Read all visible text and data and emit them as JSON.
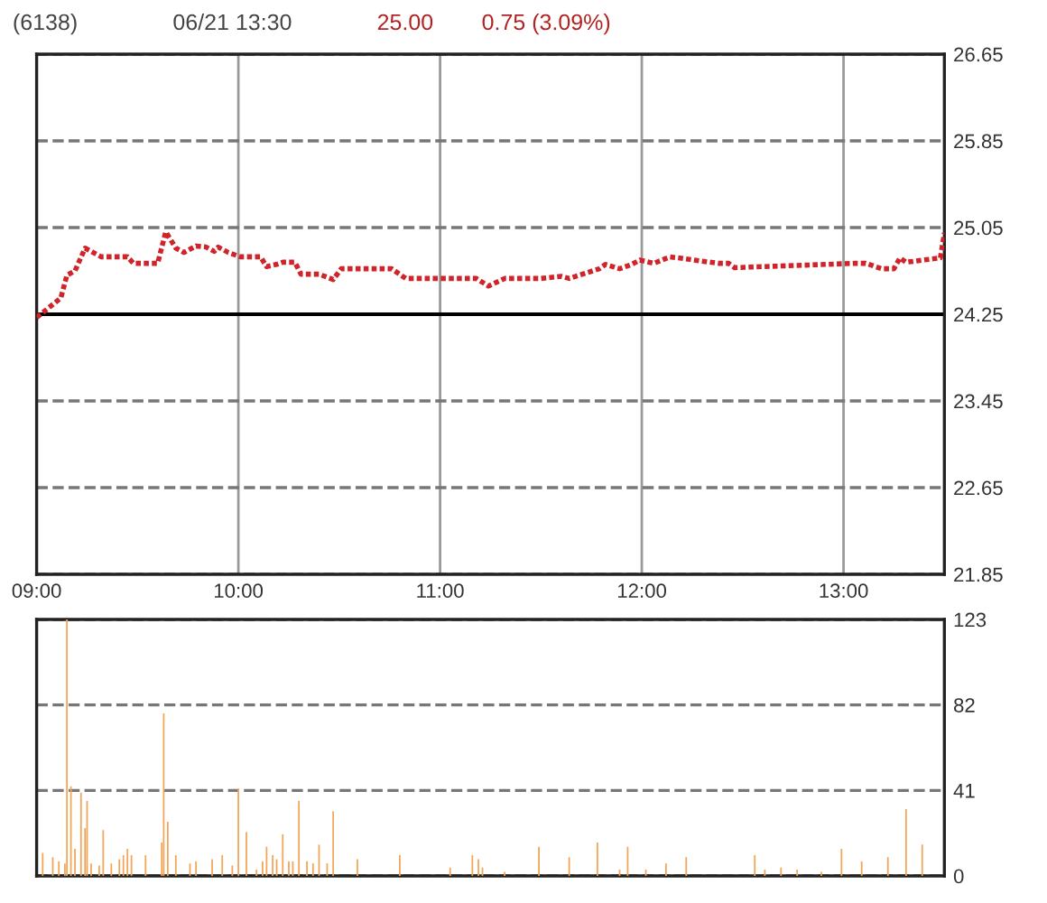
{
  "chart_data": [
    {
      "type": "line",
      "title": "(6138)",
      "subtitle": "06/21 13:30",
      "annotations": [
        "25.00",
        "0.75 (3.09%)"
      ],
      "x": [
        9.0,
        9.12,
        9.15,
        9.19,
        9.24,
        9.32,
        9.45,
        9.48,
        9.6,
        9.64,
        9.69,
        9.73,
        9.79,
        9.84,
        9.88,
        9.9,
        9.95,
        10.01,
        10.11,
        10.14,
        10.19,
        10.22,
        10.28,
        10.31,
        10.4,
        10.47,
        10.51,
        10.76,
        10.83,
        11.18,
        11.24,
        11.32,
        11.47,
        11.5,
        11.6,
        11.64,
        11.79,
        11.82,
        11.89,
        11.95,
        11.99,
        12.06,
        12.14,
        12.38,
        12.43,
        12.46,
        13.06,
        13.11,
        13.19,
        13.25,
        13.28,
        13.31,
        13.48,
        13.5
      ],
      "series": [
        {
          "color": "#d0232a",
          "values": [
            24.22,
            24.4,
            24.61,
            24.65,
            24.86,
            24.78,
            24.78,
            24.72,
            24.72,
            25.01,
            24.86,
            24.82,
            24.88,
            24.87,
            24.83,
            24.87,
            24.82,
            24.78,
            24.78,
            24.69,
            24.71,
            24.73,
            24.73,
            24.62,
            24.62,
            24.57,
            24.67,
            24.67,
            24.58,
            24.58,
            24.51,
            24.58,
            24.58,
            24.58,
            24.6,
            24.58,
            24.67,
            24.71,
            24.67,
            24.71,
            24.75,
            24.72,
            24.78,
            24.72,
            24.72,
            24.68,
            24.72,
            24.72,
            24.67,
            24.67,
            24.77,
            24.73,
            24.77,
            25.0
          ]
        }
      ],
      "xlim": [
        9,
        13.5
      ],
      "xticks": [
        {
          "value": 9,
          "label": "09:00"
        },
        {
          "value": 10,
          "label": "10:00"
        },
        {
          "value": 11,
          "label": "11:00"
        },
        {
          "value": 12,
          "label": "12:00"
        },
        {
          "value": 13,
          "label": "13:00"
        }
      ],
      "ylim": [
        21.85,
        26.65
      ],
      "yticks": [
        21.85,
        22.65,
        23.45,
        24.25,
        25.05,
        25.85,
        26.65
      ],
      "ref_lines": [
        {
          "axis": "y",
          "value": 24.25,
          "color": "#000000",
          "line_style": "solid"
        }
      ],
      "grid": true,
      "line_style": "dotted",
      "marker": "none"
    },
    {
      "type": "bar",
      "x": [
        9.03,
        9.08,
        9.11,
        9.14,
        9.15,
        9.17,
        9.19,
        9.22,
        9.24,
        9.25,
        9.27,
        9.31,
        9.33,
        9.37,
        9.41,
        9.43,
        9.45,
        9.47,
        9.54,
        9.62,
        9.63,
        9.65,
        9.69,
        9.76,
        9.79,
        9.87,
        9.92,
        9.97,
        10.0,
        10.04,
        10.09,
        10.12,
        10.14,
        10.17,
        10.19,
        10.22,
        10.25,
        10.27,
        10.3,
        10.34,
        10.37,
        10.4,
        10.44,
        10.47,
        10.59,
        10.8,
        11.05,
        11.16,
        11.19,
        11.21,
        11.32,
        11.49,
        11.64,
        11.78,
        11.89,
        11.93,
        12.02,
        12.12,
        12.22,
        12.56,
        12.61,
        12.69,
        12.77,
        12.89,
        12.99,
        13.09,
        13.22,
        13.31,
        13.39
      ],
      "series": [
        {
          "color": "#f2a65a",
          "values": [
            11,
            9,
            7,
            6,
            123,
            43,
            13,
            40,
            23,
            36,
            6,
            5,
            22,
            6,
            8,
            10,
            13,
            10,
            10,
            16,
            78,
            26,
            10,
            6,
            7,
            8,
            10,
            5,
            42,
            21,
            3,
            7,
            14,
            10,
            8,
            20,
            7,
            7,
            36,
            7,
            6,
            15,
            6,
            31,
            8,
            10,
            4,
            10,
            8,
            4,
            2,
            14,
            9,
            16,
            3,
            14,
            3,
            6,
            9,
            10,
            3,
            4,
            3,
            2,
            13,
            7,
            9,
            32,
            15
          ]
        }
      ],
      "xlim": [
        9,
        13.5
      ],
      "ylim": [
        0,
        123
      ],
      "yticks": [
        0,
        41,
        82,
        123
      ],
      "grid": "y",
      "tick_labels": "y"
    }
  ]
}
